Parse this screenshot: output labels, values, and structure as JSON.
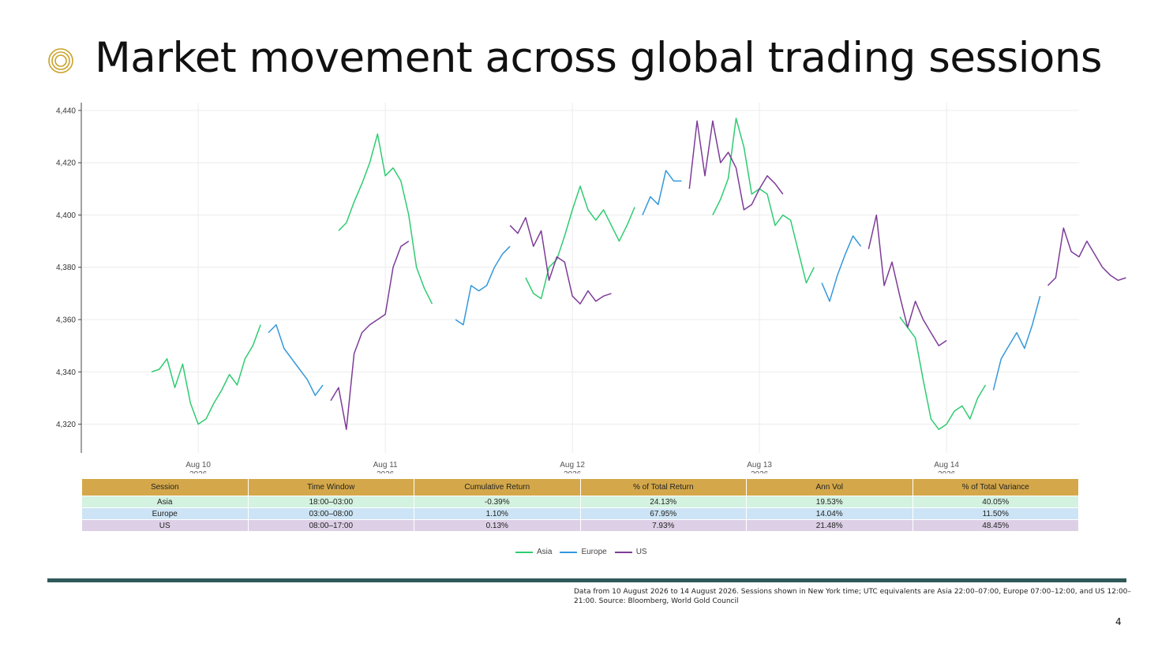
{
  "slide": {
    "title": "Market movement across global trading sessions",
    "page_number": "4",
    "icon": "concentric-circles-icon",
    "accent_color": "#c9a227",
    "divider_color": "#2f5959",
    "footnote": "Data from 10 August 2026 to 14 August 2026. Sessions shown in New York time; UTC equivalents are Asia 22:00–07:00, Europe 07:00–12:00, and US 12:00–21:00. Source: Bloomberg, World Gold Council"
  },
  "chart_data": {
    "type": "line",
    "title": "",
    "xlabel": "",
    "ylabel": "",
    "x_unit": "hours since 10 Aug 2026 00:00 (New York time)",
    "ylim": [
      4309,
      4443
    ],
    "xlim": [
      -15,
      113
    ],
    "yticks": [
      4320,
      4340,
      4360,
      4380,
      4400,
      4420,
      4440
    ],
    "ytick_labels": [
      "4,320",
      "4,340",
      "4,360",
      "4,380",
      "4,400",
      "4,420",
      "4,440"
    ],
    "xticks": [
      0,
      24,
      48,
      72,
      96
    ],
    "xtick_labels": [
      [
        "Aug 10",
        "2026"
      ],
      [
        "Aug 11",
        "2026"
      ],
      [
        "Aug 12",
        "2026"
      ],
      [
        "Aug 13",
        "2026"
      ],
      [
        "Aug 14",
        "2026"
      ]
    ],
    "grid": true,
    "legend_position": "bottom-center",
    "series": [
      {
        "name": "Asia",
        "color": "#2ecc71",
        "segments": [
          [
            [
              -6,
              4340
            ],
            [
              -5,
              4341
            ],
            [
              -4,
              4345
            ],
            [
              -3,
              4334
            ],
            [
              -2,
              4343
            ],
            [
              -1,
              4328
            ],
            [
              0,
              4320
            ],
            [
              1,
              4322
            ],
            [
              2,
              4328
            ],
            [
              3,
              4333
            ],
            [
              4,
              4339
            ],
            [
              5,
              4335
            ],
            [
              6,
              4345
            ],
            [
              7,
              4350
            ],
            [
              8,
              4358
            ]
          ],
          [
            [
              18,
              4394
            ],
            [
              19,
              4397
            ],
            [
              20,
              4405
            ],
            [
              21,
              4412
            ],
            [
              22,
              4420
            ],
            [
              23,
              4431
            ],
            [
              24,
              4415
            ],
            [
              25,
              4418
            ],
            [
              26,
              4413
            ],
            [
              27,
              4400
            ],
            [
              28,
              4380
            ],
            [
              29,
              4372
            ],
            [
              30,
              4366
            ]
          ],
          [
            [
              42,
              4376
            ],
            [
              43,
              4370
            ],
            [
              44,
              4368
            ],
            [
              45,
              4380
            ],
            [
              46,
              4383
            ],
            [
              47,
              4392
            ],
            [
              48,
              4402
            ],
            [
              49,
              4411
            ],
            [
              50,
              4402
            ],
            [
              51,
              4398
            ],
            [
              52,
              4402
            ],
            [
              53,
              4396
            ],
            [
              54,
              4390
            ],
            [
              55,
              4396
            ],
            [
              56,
              4403
            ]
          ],
          [
            [
              66,
              4400
            ],
            [
              67,
              4406
            ],
            [
              68,
              4414
            ],
            [
              69,
              4437
            ],
            [
              70,
              4426
            ],
            [
              71,
              4408
            ],
            [
              72,
              4410
            ],
            [
              73,
              4408
            ],
            [
              74,
              4396
            ],
            [
              75,
              4400
            ],
            [
              76,
              4398
            ],
            [
              77,
              4386
            ],
            [
              78,
              4374
            ],
            [
              79,
              4380
            ]
          ],
          [
            [
              90,
              4361
            ],
            [
              91,
              4357
            ],
            [
              92,
              4353
            ],
            [
              93,
              4337
            ],
            [
              94,
              4322
            ],
            [
              95,
              4318
            ],
            [
              96,
              4320
            ],
            [
              97,
              4325
            ],
            [
              98,
              4327
            ],
            [
              99,
              4322
            ],
            [
              100,
              4330
            ],
            [
              101,
              4335
            ]
          ]
        ]
      },
      {
        "name": "Europe",
        "color": "#3498db",
        "segments": [
          [
            [
              9,
              4355
            ],
            [
              10,
              4358
            ],
            [
              11,
              4349
            ],
            [
              12,
              4345
            ],
            [
              13,
              4341
            ],
            [
              14,
              4337
            ],
            [
              15,
              4331
            ],
            [
              16,
              4335
            ]
          ],
          [
            [
              33,
              4360
            ],
            [
              34,
              4358
            ],
            [
              35,
              4373
            ],
            [
              36,
              4371
            ],
            [
              37,
              4373
            ],
            [
              38,
              4380
            ],
            [
              39,
              4385
            ],
            [
              40,
              4388
            ]
          ],
          [
            [
              57,
              4400
            ],
            [
              58,
              4407
            ],
            [
              59,
              4404
            ],
            [
              60,
              4417
            ],
            [
              61,
              4413
            ],
            [
              62,
              4413
            ]
          ],
          [
            [
              80,
              4374
            ],
            [
              81,
              4367
            ],
            [
              82,
              4377
            ],
            [
              83,
              4385
            ],
            [
              84,
              4392
            ],
            [
              85,
              4388
            ]
          ],
          [
            [
              102,
              4333
            ],
            [
              103,
              4345
            ],
            [
              104,
              4350
            ],
            [
              105,
              4355
            ],
            [
              106,
              4349
            ],
            [
              107,
              4358
            ],
            [
              108,
              4369
            ]
          ]
        ]
      },
      {
        "name": "US",
        "color": "#7d3c98",
        "segments": [
          [
            [
              17,
              4329
            ],
            [
              18,
              4334
            ],
            [
              19,
              4318
            ],
            [
              20,
              4347
            ],
            [
              21,
              4355
            ],
            [
              22,
              4358
            ],
            [
              23,
              4360
            ],
            [
              24,
              4362
            ],
            [
              25,
              4380
            ],
            [
              26,
              4388
            ],
            [
              27,
              4390
            ]
          ],
          [
            [
              40,
              4396
            ],
            [
              41,
              4393
            ],
            [
              42,
              4399
            ],
            [
              43,
              4388
            ],
            [
              44,
              4394
            ],
            [
              45,
              4375
            ],
            [
              46,
              4384
            ],
            [
              47,
              4382
            ],
            [
              48,
              4369
            ],
            [
              49,
              4366
            ],
            [
              50,
              4371
            ],
            [
              51,
              4367
            ],
            [
              52,
              4369
            ],
            [
              53,
              4370
            ]
          ],
          [
            [
              63,
              4410
            ],
            [
              64,
              4436
            ],
            [
              65,
              4415
            ],
            [
              66,
              4436
            ],
            [
              67,
              4420
            ],
            [
              68,
              4424
            ],
            [
              69,
              4418
            ],
            [
              70,
              4402
            ],
            [
              71,
              4404
            ],
            [
              72,
              4410
            ],
            [
              73,
              4415
            ],
            [
              74,
              4412
            ],
            [
              75,
              4408
            ]
          ],
          [
            [
              86,
              4387
            ],
            [
              87,
              4400
            ],
            [
              88,
              4373
            ],
            [
              89,
              4382
            ],
            [
              90,
              4369
            ],
            [
              91,
              4357
            ],
            [
              92,
              4367
            ],
            [
              93,
              4360
            ],
            [
              94,
              4355
            ],
            [
              95,
              4350
            ],
            [
              96,
              4352
            ]
          ],
          [
            [
              109,
              4373
            ],
            [
              110,
              4376
            ],
            [
              111,
              4395
            ],
            [
              112,
              4386
            ],
            [
              113,
              4384
            ],
            [
              114,
              4390
            ],
            [
              115,
              4385
            ],
            [
              116,
              4380
            ],
            [
              117,
              4377
            ],
            [
              118,
              4375
            ],
            [
              119,
              4376
            ]
          ]
        ]
      }
    ]
  },
  "table": {
    "columns": [
      "Session",
      "Time Window",
      "Cumulative Return",
      "% of Total Return",
      "Ann Vol",
      "% of Total Variance"
    ],
    "header_color": "#d4a84a",
    "rows": [
      {
        "cells": [
          "Asia",
          "18:00–03:00",
          "-0.39%",
          "24.13%",
          "19.53%",
          "40.05%"
        ],
        "color": "#d3f2df"
      },
      {
        "cells": [
          "Europe",
          "03:00–08:00",
          "1.10%",
          "67.95%",
          "14.04%",
          "11.50%"
        ],
        "color": "#cce4f5"
      },
      {
        "cells": [
          "US",
          "08:00–17:00",
          "0.13%",
          "7.93%",
          "21.48%",
          "48.45%"
        ],
        "color": "#ddd0e6"
      }
    ]
  },
  "legend": {
    "items": [
      {
        "label": "Asia",
        "color": "#2ecc71"
      },
      {
        "label": "Europe",
        "color": "#3498db"
      },
      {
        "label": "US",
        "color": "#7d3c98"
      }
    ]
  }
}
